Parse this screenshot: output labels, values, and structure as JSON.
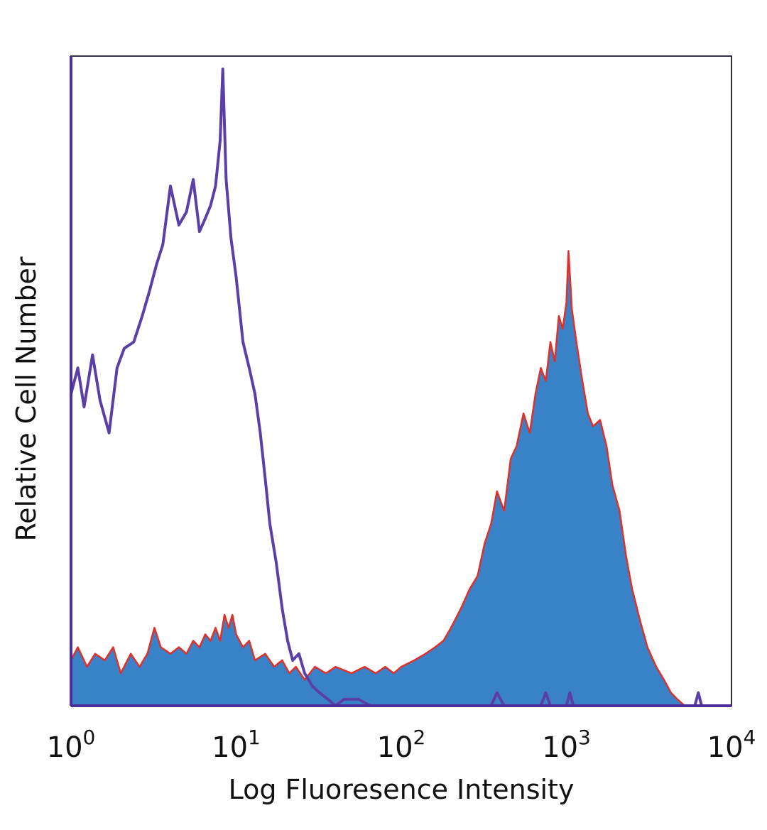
{
  "chart_data": {
    "type": "area",
    "title": "",
    "xlabel": "Log Fluoresence Intensity",
    "ylabel": "Relative Cell Number",
    "x_scale": "log",
    "xlim": [
      1,
      10000
    ],
    "ylim": [
      0,
      1
    ],
    "grid": false,
    "legend": "none",
    "x_ticks": [
      {
        "base": "10",
        "exp": "0",
        "value": 1
      },
      {
        "base": "10",
        "exp": "1",
        "value": 10
      },
      {
        "base": "10",
        "exp": "2",
        "value": 100
      },
      {
        "base": "10",
        "exp": "3",
        "value": 1000
      },
      {
        "base": "10",
        "exp": "4",
        "value": 10000
      }
    ],
    "series": [
      {
        "style": "outline",
        "color": "#5a3fa8",
        "points": [
          [
            1.0,
            0.48
          ],
          [
            1.1,
            0.52
          ],
          [
            1.2,
            0.46
          ],
          [
            1.35,
            0.54
          ],
          [
            1.5,
            0.47
          ],
          [
            1.7,
            0.42
          ],
          [
            1.9,
            0.52
          ],
          [
            2.1,
            0.55
          ],
          [
            2.4,
            0.56
          ],
          [
            2.7,
            0.6
          ],
          [
            3.0,
            0.64
          ],
          [
            3.3,
            0.68
          ],
          [
            3.6,
            0.71
          ],
          [
            4.0,
            0.8
          ],
          [
            4.5,
            0.74
          ],
          [
            5.0,
            0.76
          ],
          [
            5.5,
            0.81
          ],
          [
            6.0,
            0.73
          ],
          [
            6.5,
            0.75
          ],
          [
            7.0,
            0.77
          ],
          [
            7.5,
            0.8
          ],
          [
            8.0,
            0.87
          ],
          [
            8.3,
            0.98
          ],
          [
            8.7,
            0.81
          ],
          [
            9.3,
            0.72
          ],
          [
            10.0,
            0.66
          ],
          [
            11.0,
            0.56
          ],
          [
            12.0,
            0.52
          ],
          [
            13.0,
            0.48
          ],
          [
            14.0,
            0.42
          ],
          [
            15.0,
            0.35
          ],
          [
            16.0,
            0.28
          ],
          [
            17.5,
            0.22
          ],
          [
            19.0,
            0.15
          ],
          [
            20.5,
            0.1
          ],
          [
            22.0,
            0.07
          ],
          [
            24.0,
            0.08
          ],
          [
            26.0,
            0.05
          ],
          [
            29.0,
            0.03
          ],
          [
            32.0,
            0.02
          ],
          [
            36.0,
            0.01
          ],
          [
            40.0,
            0.0
          ],
          [
            45.0,
            0.01
          ],
          [
            55.0,
            0.01
          ],
          [
            65.0,
            0.0
          ],
          [
            100.0,
            0.0
          ],
          [
            350.0,
            0.0
          ],
          [
            380.0,
            0.02
          ],
          [
            420.0,
            0.0
          ],
          [
            700.0,
            0.0
          ],
          [
            750.0,
            0.02
          ],
          [
            800.0,
            0.0
          ],
          [
            1000.0,
            0.0
          ],
          [
            1050.0,
            0.02
          ],
          [
            1100.0,
            0.0
          ],
          [
            6000.0,
            0.0
          ],
          [
            6300.0,
            0.02
          ],
          [
            6600.0,
            0.0
          ],
          [
            10000.0,
            0.0
          ]
        ]
      },
      {
        "style": "filled",
        "color": "#3a82c8",
        "edge_color": "#e0302a",
        "points": [
          [
            1.0,
            0.07
          ],
          [
            1.1,
            0.09
          ],
          [
            1.25,
            0.06
          ],
          [
            1.4,
            0.08
          ],
          [
            1.6,
            0.07
          ],
          [
            1.8,
            0.09
          ],
          [
            2.0,
            0.05
          ],
          [
            2.3,
            0.08
          ],
          [
            2.6,
            0.06
          ],
          [
            2.9,
            0.08
          ],
          [
            3.2,
            0.12
          ],
          [
            3.5,
            0.09
          ],
          [
            4.0,
            0.08
          ],
          [
            4.5,
            0.09
          ],
          [
            5.0,
            0.08
          ],
          [
            5.5,
            0.1
          ],
          [
            6.0,
            0.09
          ],
          [
            6.5,
            0.11
          ],
          [
            7.0,
            0.1
          ],
          [
            7.5,
            0.12
          ],
          [
            8.0,
            0.1
          ],
          [
            8.5,
            0.14
          ],
          [
            9.0,
            0.12
          ],
          [
            9.5,
            0.14
          ],
          [
            10.0,
            0.11
          ],
          [
            11.0,
            0.09
          ],
          [
            12.0,
            0.1
          ],
          [
            13.0,
            0.07
          ],
          [
            15.0,
            0.08
          ],
          [
            17.0,
            0.06
          ],
          [
            19.0,
            0.07
          ],
          [
            21.0,
            0.05
          ],
          [
            23.0,
            0.06
          ],
          [
            26.0,
            0.04
          ],
          [
            30.0,
            0.06
          ],
          [
            35.0,
            0.05
          ],
          [
            40.0,
            0.06
          ],
          [
            50.0,
            0.05
          ],
          [
            60.0,
            0.06
          ],
          [
            70.0,
            0.05
          ],
          [
            80.0,
            0.06
          ],
          [
            90.0,
            0.05
          ],
          [
            100.0,
            0.06
          ],
          [
            120.0,
            0.07
          ],
          [
            140.0,
            0.08
          ],
          [
            160.0,
            0.09
          ],
          [
            180.0,
            0.1
          ],
          [
            200.0,
            0.12
          ],
          [
            230.0,
            0.15
          ],
          [
            260.0,
            0.18
          ],
          [
            290.0,
            0.2
          ],
          [
            320.0,
            0.25
          ],
          [
            350.0,
            0.28
          ],
          [
            380.0,
            0.33
          ],
          [
            420.0,
            0.3
          ],
          [
            460.0,
            0.38
          ],
          [
            500.0,
            0.4
          ],
          [
            550.0,
            0.45
          ],
          [
            600.0,
            0.42
          ],
          [
            650.0,
            0.48
          ],
          [
            700.0,
            0.52
          ],
          [
            750.0,
            0.5
          ],
          [
            800.0,
            0.56
          ],
          [
            850.0,
            0.53
          ],
          [
            900.0,
            0.6
          ],
          [
            950.0,
            0.58
          ],
          [
            1000.0,
            0.62
          ],
          [
            1030.0,
            0.7
          ],
          [
            1080.0,
            0.61
          ],
          [
            1150.0,
            0.56
          ],
          [
            1250.0,
            0.5
          ],
          [
            1350.0,
            0.45
          ],
          [
            1450.0,
            0.43
          ],
          [
            1600.0,
            0.44
          ],
          [
            1750.0,
            0.4
          ],
          [
            1900.0,
            0.34
          ],
          [
            2100.0,
            0.3
          ],
          [
            2300.0,
            0.23
          ],
          [
            2500.0,
            0.18
          ],
          [
            2800.0,
            0.13
          ],
          [
            3100.0,
            0.09
          ],
          [
            3500.0,
            0.06
          ],
          [
            3900.0,
            0.04
          ],
          [
            4300.0,
            0.02
          ],
          [
            4700.0,
            0.01
          ],
          [
            5200.0,
            0.0
          ],
          [
            10000.0,
            0.0
          ]
        ]
      }
    ]
  }
}
